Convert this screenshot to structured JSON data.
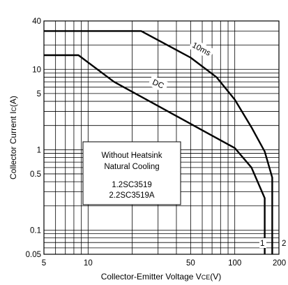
{
  "chart_data": {
    "type": "line",
    "title": "",
    "xlabel": "Collector-Emitter Voltage V",
    "xlabel_sub": "CE",
    "xlabel_unit": "(V)",
    "ylabel": "Collector Current I",
    "ylabel_sub": "C",
    "ylabel_unit": "(A)",
    "x_scale": "log",
    "y_scale": "log",
    "xlim": [
      5,
      200
    ],
    "ylim": [
      0.05,
      40
    ],
    "grid": true,
    "x_ticks": [
      {
        "value": 5,
        "label": "5"
      },
      {
        "value": 10,
        "label": "10"
      },
      {
        "value": 50,
        "label": "50"
      },
      {
        "value": 100,
        "label": "100"
      },
      {
        "value": 200,
        "label": "200"
      }
    ],
    "y_ticks": [
      {
        "value": 40,
        "label": "40"
      },
      {
        "value": 10,
        "label": "10"
      },
      {
        "value": 5,
        "label": "5"
      },
      {
        "value": 1,
        "label": "1"
      },
      {
        "value": 0.5,
        "label": "0.5"
      },
      {
        "value": 0.1,
        "label": "0.1"
      },
      {
        "value": 0.05,
        "label": "0.05"
      }
    ],
    "series": [
      {
        "name": "10ms",
        "x": [
          5,
          23,
          50,
          75,
          100,
          130,
          160,
          180,
          180
        ],
        "y": [
          30,
          30,
          14,
          8,
          4.2,
          1.9,
          0.95,
          0.45,
          0.05
        ]
      },
      {
        "name": "DC",
        "x": [
          5,
          8.6,
          15,
          30,
          60,
          100,
          130,
          160,
          160
        ],
        "y": [
          15,
          15,
          7,
          3.5,
          1.75,
          1.05,
          0.6,
          0.25,
          0.05
        ]
      }
    ],
    "annotations": {
      "curve_10ms": "10ms",
      "curve_dc": "DC",
      "box_line1": "Without Heatsink",
      "box_line2": "Natural Cooling",
      "box_line3": "1.2SC3519",
      "box_line4": "2.2SC3519A",
      "end_mark_1": "1",
      "end_mark_2": "2"
    }
  }
}
